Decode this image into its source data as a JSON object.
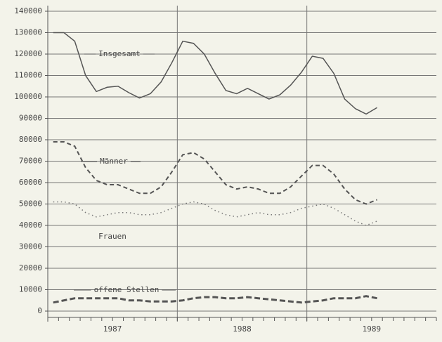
{
  "chart_data": {
    "type": "line",
    "xlim": [
      1987,
      1990
    ],
    "xticks": [
      {
        "value": 1987.5,
        "label": "1987"
      },
      {
        "value": 1988.5,
        "label": "1988"
      },
      {
        "value": 1989.5,
        "label": "1989"
      }
    ],
    "xgrid": [
      1988,
      1989
    ],
    "x": [
      1987.042,
      1987.125,
      1987.208,
      1987.292,
      1987.375,
      1987.458,
      1987.542,
      1987.625,
      1987.708,
      1987.792,
      1987.875,
      1987.958,
      1988.042,
      1988.125,
      1988.208,
      1988.292,
      1988.375,
      1988.458,
      1988.542,
      1988.625,
      1988.708,
      1988.792,
      1988.875,
      1988.958,
      1989.042,
      1989.125,
      1989.208,
      1989.292,
      1989.375,
      1989.458,
      1989.542
    ],
    "ylim": [
      0,
      140000
    ],
    "yticks": [
      0,
      10000,
      20000,
      30000,
      40000,
      50000,
      60000,
      70000,
      80000,
      90000,
      100000,
      110000,
      120000,
      130000,
      140000
    ],
    "grid": true,
    "series": [
      {
        "name": "Insgesamt",
        "color": "#555555",
        "style": "solid",
        "values": [
          130000,
          130000,
          126000,
          110000,
          102500,
          104500,
          105000,
          102000,
          99500,
          101500,
          107000,
          116000,
          126000,
          125000,
          120000,
          111000,
          103000,
          101500,
          104000,
          101500,
          99000,
          101000,
          105500,
          111500,
          119000,
          118000,
          111000,
          99000,
          94500,
          92000,
          95000
        ]
      },
      {
        "name": "Männer",
        "color": "#555555",
        "style": "dashed",
        "values": [
          79000,
          79000,
          77000,
          67000,
          61000,
          59000,
          59000,
          57000,
          55000,
          55000,
          58000,
          65000,
          73000,
          74000,
          71000,
          65000,
          59000,
          57000,
          58000,
          57000,
          55000,
          55000,
          58000,
          63000,
          68000,
          68000,
          64000,
          57000,
          52000,
          50000,
          52000
        ]
      },
      {
        "name": "Frauen",
        "color": "#777777",
        "style": "dotted",
        "values": [
          51000,
          51000,
          50000,
          46000,
          44000,
          45000,
          46000,
          46000,
          45000,
          45000,
          46000,
          48000,
          50000,
          51000,
          50000,
          47000,
          45000,
          44000,
          45000,
          46000,
          45000,
          45000,
          46000,
          48000,
          49000,
          50000,
          48000,
          45000,
          42000,
          40000,
          42000
        ]
      },
      {
        "name": "offene Stellen",
        "color": "#555555",
        "style": "thickdashed",
        "values": [
          4000,
          5000,
          6000,
          6000,
          6000,
          6000,
          6000,
          5000,
          5000,
          4500,
          4500,
          4500,
          5000,
          6000,
          6500,
          6500,
          6000,
          6000,
          6500,
          6000,
          5500,
          5000,
          4500,
          4000,
          4500,
          5000,
          6000,
          6000,
          6000,
          7000,
          6000
        ]
      }
    ]
  }
}
